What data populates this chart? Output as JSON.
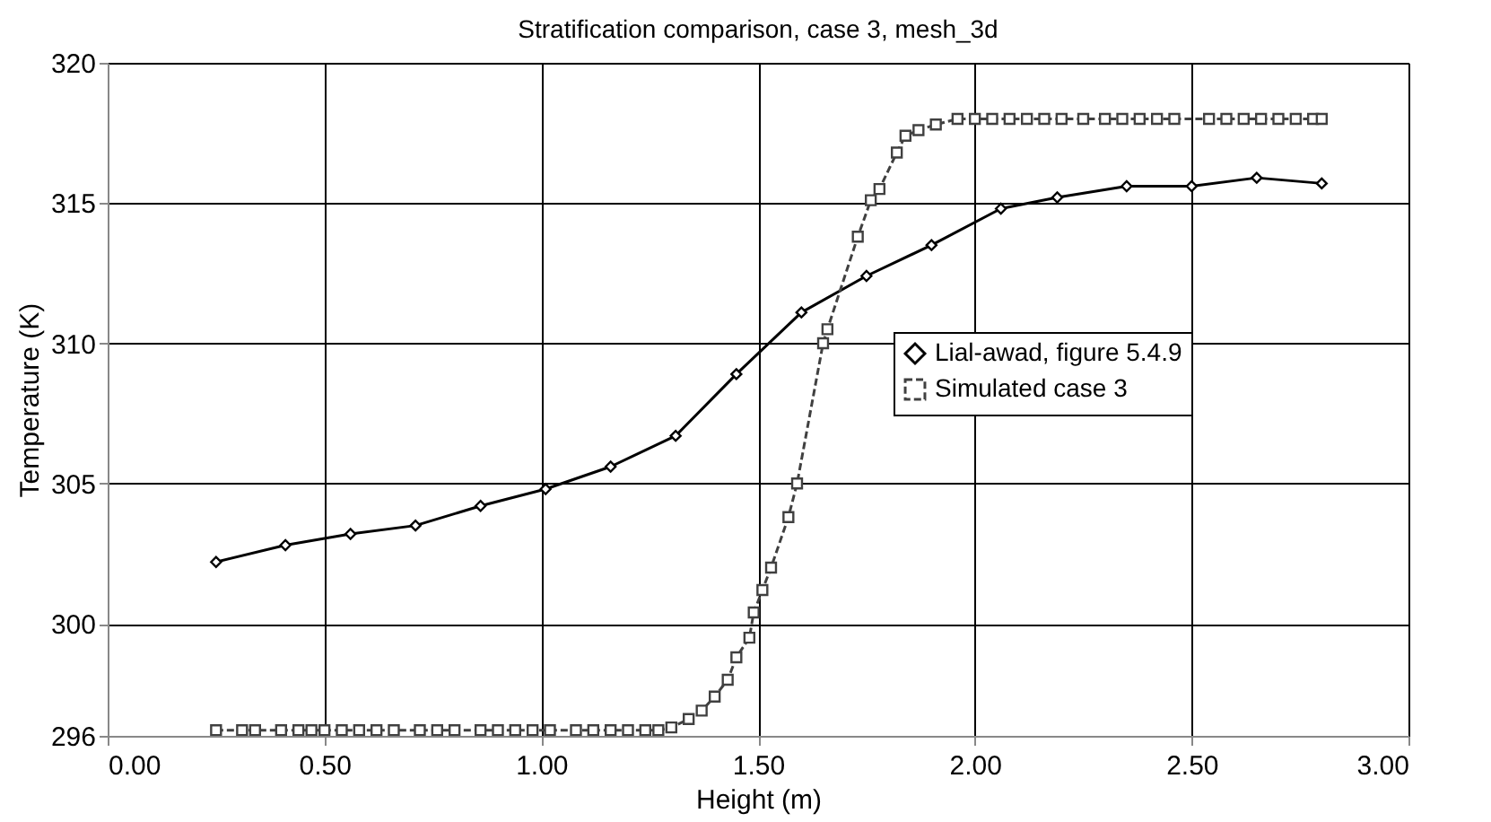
{
  "chart_data": {
    "type": "line",
    "title": "Stratification comparison, case 3, mesh_3d",
    "xlabel": "Height (m)",
    "ylabel": "Temperature (K)",
    "xlim": [
      0,
      3
    ],
    "xticks": [
      {
        "value": 0,
        "label": "0.00"
      },
      {
        "value": 0.5,
        "label": "0.50"
      },
      {
        "value": 1,
        "label": "1.00"
      },
      {
        "value": 1.5,
        "label": "1.50"
      },
      {
        "value": 2,
        "label": "2.00"
      },
      {
        "value": 2.5,
        "label": "2.50"
      },
      {
        "value": 3,
        "label": "3.00"
      }
    ],
    "ylim": [
      296,
      320
    ],
    "yticks": [
      296,
      300,
      305,
      310,
      315,
      320
    ],
    "grid": true,
    "legend": "right",
    "series": [
      {
        "name": "Lial-awad, figure 5.4.9",
        "color": "#000000",
        "marker": "diamond",
        "line_style": "solid",
        "x": [
          0.25,
          0.41,
          0.56,
          0.71,
          0.86,
          1.01,
          1.16,
          1.31,
          1.45,
          1.6,
          1.75,
          1.9,
          2.06,
          2.19,
          2.35,
          2.5,
          2.65,
          2.8
        ],
        "values": [
          302.2,
          302.8,
          303.2,
          303.5,
          304.2,
          304.8,
          305.6,
          306.7,
          308.9,
          311.1,
          312.4,
          313.5,
          314.8,
          315.2,
          315.6,
          315.6,
          315.9,
          315.7
        ]
      },
      {
        "name": "Simulated case 3",
        "color": "#404040",
        "marker": "square",
        "line_style": "dashed",
        "x": [
          0.25,
          0.31,
          0.34,
          0.4,
          0.44,
          0.47,
          0.5,
          0.54,
          0.58,
          0.62,
          0.66,
          0.72,
          0.76,
          0.8,
          0.86,
          0.9,
          0.94,
          0.98,
          1.02,
          1.08,
          1.12,
          1.16,
          1.2,
          1.24,
          1.27,
          1.3,
          1.34,
          1.37,
          1.4,
          1.43,
          1.45,
          1.48,
          1.49,
          1.51,
          1.53,
          1.57,
          1.59,
          1.65,
          1.66,
          1.73,
          1.76,
          1.78,
          1.82,
          1.84,
          1.87,
          1.91,
          1.96,
          2.0,
          2.04,
          2.08,
          2.12,
          2.16,
          2.2,
          2.25,
          2.3,
          2.34,
          2.38,
          2.42,
          2.46,
          2.54,
          2.58,
          2.62,
          2.66,
          2.7,
          2.74,
          2.78,
          2.8
        ],
        "values": [
          296.2,
          296.2,
          296.2,
          296.2,
          296.2,
          296.2,
          296.2,
          296.2,
          296.2,
          296.2,
          296.2,
          296.2,
          296.2,
          296.2,
          296.2,
          296.2,
          296.2,
          296.2,
          296.2,
          296.2,
          296.2,
          296.2,
          296.2,
          296.2,
          296.2,
          296.3,
          296.6,
          296.9,
          297.4,
          298.0,
          298.8,
          299.5,
          300.4,
          301.2,
          302.0,
          303.8,
          305.0,
          310.0,
          310.5,
          313.8,
          315.1,
          315.5,
          316.8,
          317.4,
          317.6,
          317.8,
          318.0,
          318.0,
          318.0,
          318.0,
          318.0,
          318.0,
          318.0,
          318.0,
          318.0,
          318.0,
          318.0,
          318.0,
          318.0,
          318.0,
          318.0,
          318.0,
          318.0,
          318.0,
          318.0,
          318.0,
          318.0
        ]
      }
    ]
  }
}
